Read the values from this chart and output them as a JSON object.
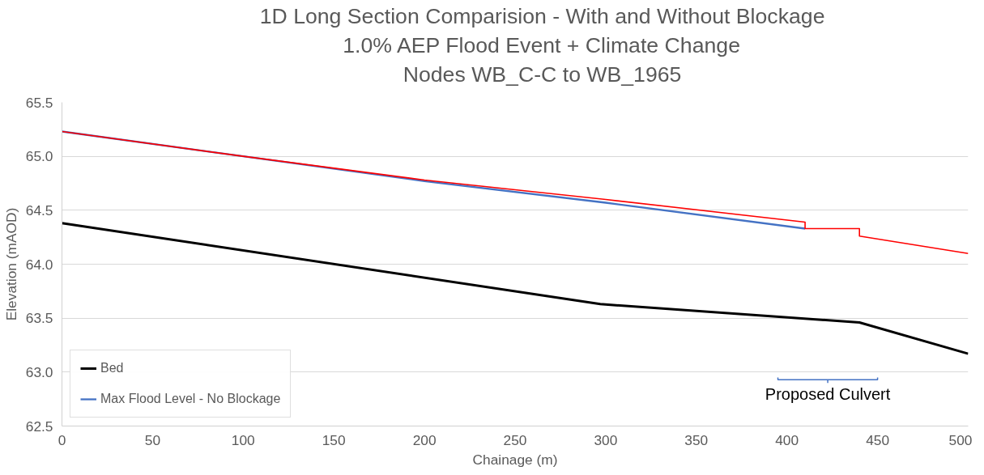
{
  "chart_data": {
    "type": "line",
    "title": "1D Long Section Comparision - With and Without Blockage",
    "subtitle": "1.0% AEP Flood Event + Climate Change\nNodes WB_C-C to WB_1965",
    "xlabel": "Chainage (m)",
    "ylabel": "Elevation (mAOD)",
    "xlim": [
      0,
      500
    ],
    "xticks": [
      0,
      50,
      100,
      150,
      200,
      250,
      300,
      350,
      400,
      450,
      500
    ],
    "ylim": [
      62.5,
      65.5
    ],
    "yticks": [
      {
        "value": 62.5,
        "label": "62.5"
      },
      {
        "value": 63.0,
        "label": "63.0"
      },
      {
        "value": 63.5,
        "label": "63.5"
      },
      {
        "value": 64.0,
        "label": "64.0"
      },
      {
        "value": 64.5,
        "label": "64.5"
      },
      {
        "value": 65.0,
        "label": "65.0"
      },
      {
        "value": 65.5,
        "label": "65.5"
      }
    ],
    "grid": "y",
    "legend": "bottom left",
    "line_style": "solid",
    "series": [
      {
        "name": "Bed",
        "color": "#000000",
        "x": [
          0,
          297,
          440,
          500
        ],
        "values": [
          64.38,
          63.63,
          63.46,
          63.17
        ]
      },
      {
        "name": "Max Flood Level - No Blockage",
        "color": "#4472c4",
        "x": [
          0,
          100,
          200,
          300,
          410
        ],
        "values": [
          65.23,
          65.0,
          64.77,
          64.57,
          64.33
        ]
      },
      {
        "color": "#ff0000",
        "x": [
          0,
          100,
          200,
          300,
          410,
          410,
          440,
          440,
          500
        ],
        "values": [
          65.23,
          65.0,
          64.78,
          64.6,
          64.39,
          64.33,
          64.33,
          64.26,
          64.1
        ]
      }
    ],
    "annotations": [
      "Proposed Culvert"
    ]
  }
}
